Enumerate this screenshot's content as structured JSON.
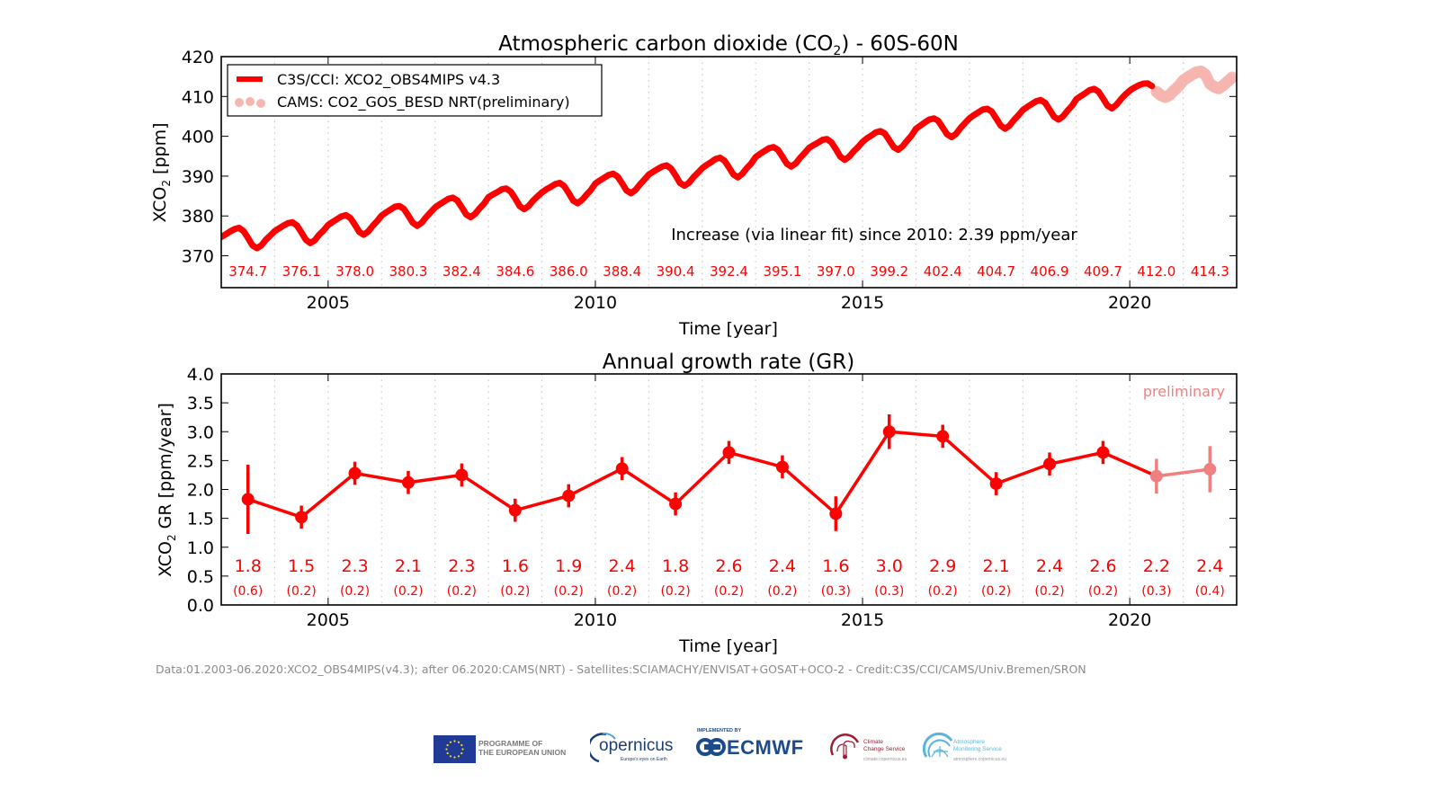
{
  "chart_data": [
    {
      "type": "line",
      "title": "Atmospheric carbon dioxide (CO₂) - 60S-60N",
      "title_parts": {
        "main": "Atmospheric carbon dioxide (CO",
        "sub": "2",
        "tail": ") - 60S-60N"
      },
      "xlabel": "Time [year]",
      "ylabel": "XCO₂ [ppm]",
      "ylabel_parts": {
        "main": "XCO",
        "sub": "2",
        "tail": " [ppm]"
      },
      "xlim": [
        2003,
        2022
      ],
      "ylim": [
        362,
        420
      ],
      "xticks": [
        2005,
        2010,
        2015,
        2020
      ],
      "yticks": [
        370,
        380,
        390,
        400,
        410,
        420
      ],
      "grid": "vertical dotted at each year",
      "legend": {
        "position": "top-left",
        "entries": [
          {
            "label": "C3S/CCI: XCO2_OBS4MIPS v4.3",
            "color": "#ff0000",
            "style": "solid"
          },
          {
            "label": "CAMS: CO2_GOS_BESD NRT(preliminary)",
            "color": "#f7b5b0",
            "style": "dots"
          }
        ]
      },
      "annotation": "Increase (via linear fit) since 2010: 2.39 ppm/year",
      "annual_means": {
        "years": [
          2003,
          2004,
          2005,
          2006,
          2007,
          2008,
          2009,
          2010,
          2011,
          2012,
          2013,
          2014,
          2015,
          2016,
          2017,
          2018,
          2019,
          2020,
          2021
        ],
        "labels": [
          "374.7",
          "376.1",
          "378.0",
          "380.3",
          "382.4",
          "384.6",
          "386.0",
          "388.4",
          "390.4",
          "392.4",
          "395.1",
          "397.0",
          "399.2",
          "402.4",
          "404.7",
          "406.9",
          "409.7",
          "412.0",
          "414.3"
        ]
      },
      "series": [
        {
          "name": "C3S/CCI: XCO2_OBS4MIPS v4.3",
          "color": "#ff0000",
          "start": 2003.0,
          "step_years": 0.0833333,
          "values": [
            374.7,
            375.4,
            376.1,
            376.7,
            377.0,
            376.2,
            374.5,
            372.6,
            371.9,
            372.6,
            374.0,
            375.1,
            376.2,
            376.9,
            377.6,
            378.2,
            378.4,
            377.6,
            375.9,
            374.0,
            373.2,
            373.9,
            375.3,
            376.4,
            377.7,
            378.5,
            379.2,
            379.9,
            380.2,
            379.5,
            377.8,
            376.0,
            375.3,
            376.1,
            377.5,
            378.7,
            380.1,
            380.9,
            381.6,
            382.3,
            382.5,
            381.8,
            380.1,
            378.3,
            377.5,
            378.3,
            379.7,
            380.9,
            382.1,
            382.9,
            383.6,
            384.3,
            384.6,
            383.9,
            382.2,
            380.4,
            379.7,
            380.5,
            381.9,
            383.1,
            384.7,
            385.4,
            386.0,
            386.7,
            386.9,
            386.1,
            384.4,
            382.5,
            381.7,
            382.5,
            383.8,
            384.9,
            385.9,
            386.7,
            387.3,
            388.0,
            388.3,
            387.5,
            385.8,
            383.9,
            383.2,
            384.0,
            385.3,
            386.5,
            388.1,
            388.9,
            389.6,
            390.3,
            390.6,
            389.9,
            388.2,
            386.4,
            385.7,
            386.5,
            387.9,
            389.1,
            390.4,
            391.1,
            391.8,
            392.4,
            392.7,
            391.9,
            390.2,
            388.3,
            387.6,
            388.3,
            389.7,
            390.8,
            392.0,
            392.8,
            393.5,
            394.3,
            394.6,
            393.9,
            392.2,
            390.4,
            389.7,
            390.6,
            392.0,
            393.2,
            394.8,
            395.6,
            396.3,
            397.0,
            397.3,
            396.6,
            394.9,
            393.1,
            392.4,
            393.2,
            394.6,
            395.8,
            397.1,
            397.8,
            398.4,
            399.1,
            399.3,
            398.5,
            396.8,
            394.9,
            394.1,
            394.9,
            396.2,
            397.3,
            398.6,
            399.5,
            400.2,
            401.0,
            401.3,
            400.7,
            399.0,
            397.3,
            396.6,
            397.5,
            398.9,
            400.2,
            401.9,
            402.7,
            403.5,
            404.2,
            404.5,
            403.9,
            402.2,
            400.5,
            399.8,
            400.6,
            402.1,
            403.3,
            404.5,
            405.3,
            406.0,
            406.7,
            406.9,
            406.2,
            404.5,
            402.7,
            401.9,
            402.7,
            404.1,
            405.3,
            406.6,
            407.4,
            408.1,
            408.8,
            409.1,
            408.4,
            406.7,
            404.9,
            404.2,
            405.0,
            406.4,
            407.6,
            409.3,
            410.1,
            410.8,
            411.6,
            411.9,
            411.2,
            409.5,
            407.7,
            407.0,
            407.9,
            409.3,
            410.5,
            411.5,
            412.2,
            412.8,
            413.2,
            413.3,
            412.6
          ]
        },
        {
          "name": "CAMS: CO2_GOS_BESD NRT(preliminary)",
          "color": "#f7b5b0",
          "start": 2020.5,
          "step_years": 0.0833333,
          "values": [
            411.2,
            410.3,
            409.8,
            410.4,
            411.6,
            412.6,
            414.0,
            414.8,
            415.5,
            416.1,
            416.3,
            415.5,
            413.2,
            412.4,
            412.0,
            412.8,
            413.8,
            414.8
          ]
        }
      ]
    },
    {
      "type": "line",
      "title": "Annual growth rate (GR)",
      "xlabel": "Time [year]",
      "ylabel": "XCO₂ GR [ppm/year]",
      "ylabel_parts": {
        "main": "XCO",
        "sub": "2",
        "tail": " GR [ppm/year]"
      },
      "xlim": [
        2003,
        2022
      ],
      "ylim": [
        0.0,
        4.0
      ],
      "xticks": [
        2005,
        2010,
        2015,
        2020
      ],
      "yticks": [
        "0.0",
        "0.5",
        "1.0",
        "1.5",
        "2.0",
        "2.5",
        "3.0",
        "3.5",
        "4.0"
      ],
      "grid": "vertical dotted at each year",
      "annotation": "preliminary",
      "series": [
        {
          "name": "Annual growth rate",
          "color": "#ff0000",
          "preliminary_color": "#f08080",
          "x": [
            2003.5,
            2004.5,
            2005.5,
            2006.5,
            2007.5,
            2008.5,
            2009.5,
            2010.5,
            2011.5,
            2012.5,
            2013.5,
            2014.5,
            2015.5,
            2016.5,
            2017.5,
            2018.5,
            2019.5,
            2020.5,
            2021.5
          ],
          "values": [
            1.83,
            1.52,
            2.28,
            2.12,
            2.25,
            1.64,
            1.89,
            2.36,
            1.75,
            2.64,
            2.39,
            1.58,
            3.0,
            2.92,
            2.1,
            2.44,
            2.64,
            2.23,
            2.35
          ],
          "errors": [
            0.6,
            0.2,
            0.2,
            0.2,
            0.2,
            0.2,
            0.2,
            0.2,
            0.2,
            0.2,
            0.2,
            0.3,
            0.3,
            0.2,
            0.2,
            0.2,
            0.2,
            0.3,
            0.4
          ],
          "preliminary": [
            false,
            false,
            false,
            false,
            false,
            false,
            false,
            false,
            false,
            false,
            false,
            false,
            false,
            false,
            false,
            false,
            false,
            true,
            true
          ],
          "value_labels": [
            "1.8",
            "1.5",
            "2.3",
            "2.1",
            "2.3",
            "1.6",
            "1.9",
            "2.4",
            "1.8",
            "2.6",
            "2.4",
            "1.6",
            "3.0",
            "2.9",
            "2.1",
            "2.4",
            "2.6",
            "2.2",
            "2.4"
          ],
          "error_labels": [
            "(0.6)",
            "(0.2)",
            "(0.2)",
            "(0.2)",
            "(0.2)",
            "(0.2)",
            "(0.2)",
            "(0.2)",
            "(0.2)",
            "(0.2)",
            "(0.2)",
            "(0.3)",
            "(0.3)",
            "(0.2)",
            "(0.2)",
            "(0.2)",
            "(0.2)",
            "(0.3)",
            "(0.4)"
          ]
        }
      ]
    }
  ],
  "footer": {
    "credit": "Data:01.2003-06.2020:XCO2_OBS4MIPS(v4.3); after 06.2020:CAMS(NRT) - Satellites:SCIAMACHY/ENVISAT+GOSAT+OCO-2 - Credit:C3S/CCI/CAMS/Univ.Bremen/SRON"
  },
  "logos": {
    "eu": "PROGRAMME OF THE EUROPEAN UNION",
    "eu_line1": "PROGRAMME OF",
    "eu_line2": "THE EUROPEAN UNION",
    "copernicus": "opernicus",
    "copernicus_sub": "Europe's eyes on Earth",
    "ecmwf_small": "IMPLEMENTED BY",
    "ecmwf": "ECMWF",
    "c3s_line1": "Climate",
    "c3s_line2": "Change Service",
    "c3s_url": "climate.copernicus.eu",
    "cams_line1": "Atmosphere",
    "cams_line2": "Monitoring Service",
    "cams_url": "atmosphere.copernicus.eu"
  }
}
